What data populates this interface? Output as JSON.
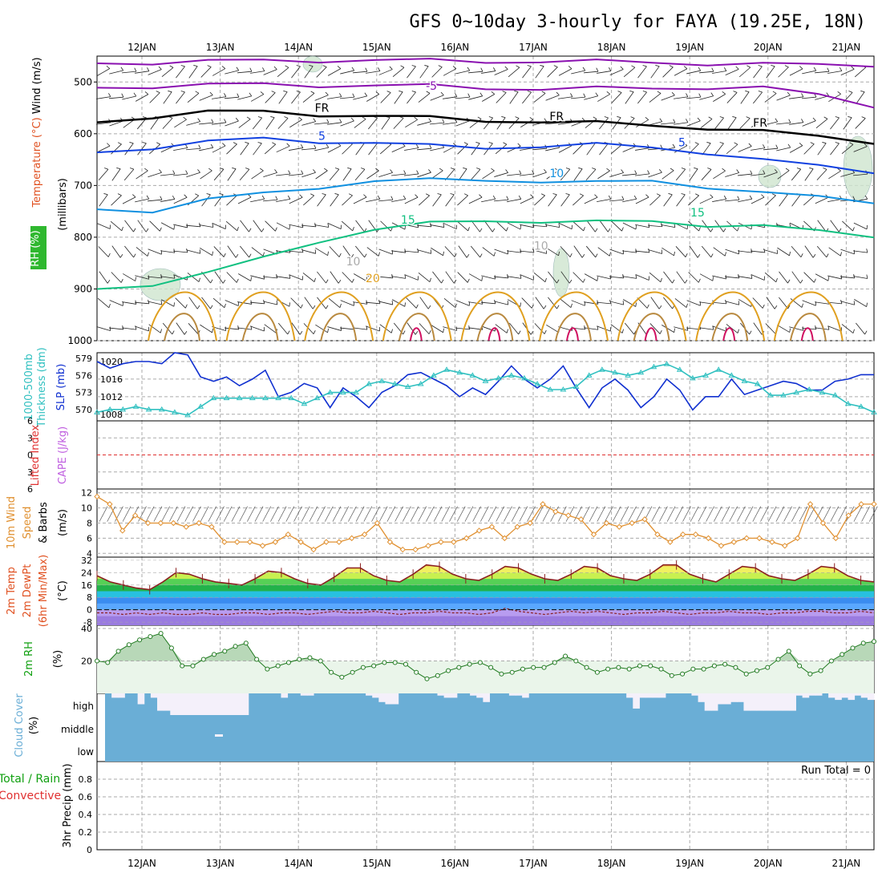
{
  "title": "GFS 0~10day 3-hourly for FAYA (19.25E, 18N)",
  "colors": {
    "wind_label": "#000000",
    "temperature_label": "#e05020",
    "rh_label": "#00aa00",
    "temp_purple": "#8a10b0",
    "temp_black": "#000000",
    "temp_blue": "#1040e0",
    "temp_cyan": "#1090e0",
    "temp_green": "#10c080",
    "temp_orange": "#e0a020",
    "temp_red": "#d01060",
    "slp": "#1030d0",
    "thickness": "#30c0c0",
    "lifted": "#e03030",
    "cape": "#c060e0",
    "wind10": "#e09030",
    "rh2m": "#10a010",
    "cloud": "#6aaed6",
    "grid": "#aaaaaa"
  },
  "chart_data": [
    {
      "type": "contour",
      "name": "upper-air",
      "dates": [
        "12JAN",
        "13JAN",
        "14JAN",
        "15JAN",
        "16JAN",
        "17JAN",
        "18JAN",
        "19JAN",
        "20JAN",
        "21JAN"
      ],
      "ylabel_parts": {
        "wind": "Wind (m/s)",
        "temperature": "Temperature (°C)",
        "rh": "RH (%)",
        "units": "(millibars)"
      },
      "yticks": [
        500,
        600,
        700,
        800,
        900,
        1000
      ],
      "ylim": [
        450,
        1000
      ],
      "contour_labels": [
        {
          "text": "-5",
          "t": 3.7,
          "p": 515,
          "color": "temp_purple"
        },
        {
          "text": "FR",
          "t": 2.3,
          "p": 558,
          "color": "temp_black"
        },
        {
          "text": "FR",
          "t": 5.3,
          "p": 574,
          "color": "temp_black"
        },
        {
          "text": "FR",
          "t": 7.9,
          "p": 586,
          "color": "temp_black"
        },
        {
          "text": "5",
          "t": 2.3,
          "p": 612,
          "color": "temp_blue"
        },
        {
          "text": "5",
          "t": 6.9,
          "p": 624,
          "color": "temp_blue"
        },
        {
          "text": "10",
          "t": 5.3,
          "p": 684,
          "color": "temp_cyan"
        },
        {
          "text": "15",
          "t": 3.4,
          "p": 774,
          "color": "temp_green"
        },
        {
          "text": "15",
          "t": 7.1,
          "p": 760,
          "color": "temp_green"
        },
        {
          "text": "20",
          "t": 2.95,
          "p": 887,
          "color": "temp_orange"
        },
        {
          "text": "10",
          "t": 2.7,
          "p": 854,
          "color": "grid"
        },
        {
          "text": "10",
          "t": 5.1,
          "p": 824,
          "color": "grid"
        }
      ],
      "isotherms": [
        {
          "name": "-10",
          "color": "temp_purple",
          "p": [
            464,
            462,
            460,
            459,
            458,
            458,
            459,
            460,
            460,
            461,
            462,
            464,
            466,
            467,
            466
          ]
        },
        {
          "name": "-5",
          "color": "temp_purple",
          "p": [
            511,
            508,
            506,
            505,
            506,
            507,
            508,
            511,
            513,
            513,
            512,
            510,
            512,
            525,
            545
          ]
        },
        {
          "name": "FR",
          "color": "temp_black",
          "p": [
            578,
            566,
            558,
            558,
            562,
            566,
            570,
            574,
            576,
            580,
            584,
            588,
            596,
            606,
            615
          ]
        },
        {
          "name": "5",
          "color": "temp_blue",
          "p": [
            636,
            626,
            616,
            610,
            614,
            618,
            624,
            626,
            624,
            622,
            626,
            636,
            652,
            662,
            672
          ]
        },
        {
          "name": "10",
          "color": "temp_cyan",
          "p": [
            746,
            748,
            728,
            716,
            702,
            692,
            690,
            688,
            692,
            696,
            690,
            702,
            716,
            722,
            730
          ]
        },
        {
          "name": "15",
          "color": "temp_green",
          "p": [
            900,
            890,
            870,
            840,
            806,
            786,
            774,
            766,
            770,
            772,
            768,
            776,
            780,
            788,
            796
          ]
        }
      ]
    },
    {
      "type": "line",
      "name": "slp-thickness",
      "left_axis": {
        "label": "1000-500mb Thickness (dm)",
        "ticks": [
          570,
          573,
          576,
          579
        ],
        "ylim": [
          568,
          580
        ]
      },
      "right_axis": {
        "label": "SLP (mb)",
        "ticks": [
          1008,
          1012,
          1016,
          1020
        ],
        "ylim": [
          1006.5,
          1022
        ]
      },
      "series": [
        {
          "name": "SLP (mb)",
          "axis": "right",
          "values": [
            1020,
            1018.5,
            1019.5,
            1020,
            1020,
            1019.5,
            1022,
            1021.5,
            1016.5,
            1015.5,
            1016.5,
            1014.5,
            1016,
            1018,
            1012,
            1013,
            1015,
            1014,
            1009.5,
            1014,
            1012,
            1009.5,
            1013,
            1014.5,
            1017,
            1017.5,
            1016,
            1014.5,
            1012,
            1014,
            1012.5,
            1015.5,
            1019,
            1016,
            1014,
            1016,
            1019,
            1014,
            1009.5,
            1014,
            1016,
            1013.5,
            1009.5,
            1012,
            1016,
            1013.5,
            1009,
            1012,
            1012,
            1016,
            1012.5,
            1013.5,
            1014.5,
            1015.5,
            1015,
            1013.5,
            1013.5,
            1015.5,
            1016,
            1017,
            1017
          ]
        },
        {
          "name": "1000-500mb Thickness (dm)",
          "axis": "left",
          "values": [
            569.5,
            570,
            570,
            570.5,
            570,
            570,
            569.5,
            569,
            570.5,
            572,
            572,
            572,
            572,
            572,
            572,
            572,
            571,
            572,
            573,
            573,
            573,
            574.5,
            575,
            574.5,
            574,
            574.5,
            576,
            577,
            576.5,
            576,
            575,
            575.5,
            576,
            575.5,
            574.5,
            573.5,
            573.5,
            574,
            576,
            577,
            576.5,
            576,
            576.5,
            577.5,
            578,
            577,
            575.5,
            576,
            577,
            576,
            575,
            574.5,
            572.5,
            572.5,
            573,
            573.5,
            573,
            572.5,
            571,
            570.5,
            569.5
          ]
        }
      ]
    },
    {
      "type": "line",
      "name": "stability",
      "left_axis": {
        "label": "Lifted Index",
        "ticks": [
          -6,
          -3,
          0,
          3,
          6
        ],
        "tick_labels": [
          "6",
          "3",
          "0",
          "3",
          "6"
        ]
      },
      "right_axis": {
        "label": "CAPE (J/kg)"
      },
      "series": [
        {
          "name": "Lifted Index zero line",
          "values": [
            0
          ]
        }
      ]
    },
    {
      "type": "line",
      "name": "10m-wind",
      "ylabel": "10m Wind Speed & Barbs",
      "yunit": "(m/s)",
      "yticks": [
        4,
        6,
        8,
        10,
        12
      ],
      "ylim": [
        3.5,
        12.5
      ],
      "series": [
        {
          "name": "10m Wind Speed",
          "values": [
            11.5,
            10.5,
            7,
            9,
            8,
            8,
            8,
            7.5,
            8,
            7.5,
            5.5,
            5.5,
            5.5,
            5,
            5.5,
            6.5,
            5.5,
            4.5,
            5.5,
            5.5,
            6,
            6.5,
            8,
            5.5,
            4.5,
            4.5,
            5,
            5.5,
            5.5,
            6,
            7,
            7.5,
            6,
            7.5,
            8,
            10.5,
            9.5,
            9,
            8.5,
            6.5,
            8,
            7.5,
            8,
            8.5,
            6.5,
            5.5,
            6.5,
            6.5,
            6,
            5,
            5.5,
            6,
            6,
            5.5,
            5,
            6,
            10.5,
            8,
            6,
            9,
            10.5,
            10.5
          ]
        }
      ]
    },
    {
      "type": "area",
      "name": "2m-temp",
      "ylabel": "2m Temp 2m DewPt (6hr Min/Max)",
      "yunit": "(°C)",
      "yticks": [
        -8,
        0,
        8,
        16,
        24,
        32
      ],
      "ylim": [
        -10,
        34
      ],
      "series": [
        {
          "name": "2m Temp",
          "values": [
            22,
            18,
            16,
            14,
            13,
            18,
            24,
            23,
            20,
            18,
            17,
            16,
            20,
            25,
            24,
            20,
            17,
            16,
            21,
            27,
            27,
            22,
            19,
            18,
            23,
            29,
            28,
            23,
            20,
            19,
            23,
            28,
            27,
            23,
            20,
            19,
            23,
            28,
            27,
            22,
            20,
            19,
            23,
            29,
            29,
            23,
            20,
            18,
            23,
            28,
            27,
            22,
            20,
            19,
            23,
            28,
            27,
            22,
            19,
            18
          ]
        },
        {
          "name": "2m DewPt",
          "values": [
            -2,
            -2,
            -3,
            -2,
            -3,
            -2,
            -3,
            -3,
            -2,
            -3,
            -3,
            -2,
            -2,
            -3,
            -2,
            -2,
            -3,
            -2,
            -1,
            -2,
            -2,
            -1,
            -2,
            -3,
            -2,
            -2,
            -1,
            -2,
            -2,
            -3,
            -2,
            1,
            -1,
            -2,
            -3,
            -2,
            -1,
            -2,
            -1,
            -2,
            -3,
            -2,
            -2,
            -1,
            -2,
            -3,
            -2,
            -2,
            -1,
            -2,
            -2,
            -3,
            -2,
            -2,
            -1,
            -1,
            -2,
            -2,
            -1,
            -2
          ]
        }
      ]
    },
    {
      "type": "area",
      "name": "2m-rh",
      "ylabel": "2m RH",
      "yunit": "(%)",
      "yticks": [
        20,
        40
      ],
      "ylim": [
        0,
        42
      ],
      "series": [
        {
          "name": "2m RH",
          "values": [
            20,
            19,
            26,
            30,
            33,
            35,
            37,
            28,
            17,
            17,
            21,
            24,
            26,
            29,
            31,
            21,
            15,
            17,
            19,
            21,
            22,
            20,
            13,
            10,
            13,
            16,
            17,
            19,
            19,
            18,
            13,
            9,
            11,
            14,
            16,
            18,
            19,
            16,
            12,
            13,
            15,
            16,
            16,
            19,
            23,
            20,
            16,
            13,
            15,
            16,
            15,
            17,
            17,
            15,
            11,
            12,
            15,
            15,
            17,
            18,
            16,
            12,
            14,
            16,
            21,
            26,
            17,
            12,
            14,
            20,
            24,
            28,
            31,
            32
          ]
        }
      ]
    },
    {
      "type": "bar",
      "name": "cloud-cover",
      "ylabel": "Cloud Cover",
      "yunit": "(%)",
      "levels": [
        "high",
        "middle",
        "low"
      ],
      "series": [
        {
          "name": "high",
          "values": [
            100,
            80,
            80,
            100,
            100,
            50,
            100,
            80,
            20,
            20,
            0,
            0,
            0,
            0,
            0,
            0,
            0,
            0,
            0,
            0,
            0,
            0,
            100,
            100,
            100,
            100,
            100,
            80,
            100,
            100,
            90,
            90,
            100,
            100,
            100,
            100,
            100,
            100,
            100,
            100,
            90,
            80,
            60,
            50,
            50,
            100,
            100,
            100,
            100,
            100,
            100,
            90,
            80,
            80,
            100,
            100,
            90,
            80,
            60,
            100,
            100,
            100,
            90,
            90,
            80,
            100,
            100,
            100,
            100,
            100,
            100,
            100,
            100,
            100,
            100,
            100,
            100,
            100,
            100,
            100,
            80,
            30,
            80,
            80,
            80,
            80,
            100,
            100,
            100,
            100,
            90,
            60,
            20,
            20,
            50,
            50,
            60,
            60,
            20,
            20,
            20,
            20,
            20,
            20,
            20,
            20,
            90,
            80,
            90,
            90,
            100,
            80,
            70,
            80,
            70,
            90,
            80,
            70
          ]
        },
        {
          "name": "middle",
          "values": [
            100,
            100,
            100,
            100,
            100,
            100,
            100,
            100,
            100,
            100,
            100,
            100,
            100,
            100,
            100,
            100,
            100,
            100,
            100,
            100,
            100,
            100,
            100,
            100,
            100,
            100,
            100,
            100,
            100,
            100,
            100,
            100,
            100,
            100,
            100,
            100,
            100,
            100,
            100,
            100,
            100,
            100,
            100,
            100,
            100,
            100,
            100,
            100,
            100,
            100,
            100,
            100,
            100,
            100,
            100,
            100,
            100,
            100,
            100,
            100,
            100
          ]
        },
        {
          "name": "low",
          "values": [
            100,
            100,
            100,
            100,
            100,
            100,
            100,
            100,
            100,
            100,
            100,
            100,
            100,
            100,
            100,
            100,
            100,
            100,
            100,
            100,
            100,
            100,
            100,
            100,
            100,
            100,
            100,
            100,
            100,
            100,
            100,
            100,
            100,
            100,
            100,
            100,
            100,
            100,
            100,
            100,
            100,
            100,
            100,
            100,
            100,
            100,
            100,
            100,
            100,
            100,
            100,
            100,
            100,
            100,
            100,
            100,
            100,
            100,
            100,
            100,
            100
          ]
        }
      ]
    },
    {
      "type": "bar",
      "name": "precip",
      "ylabel_total": "Total / Rain",
      "ylabel_conv": "Convective",
      "ylabel": "3hr Precip (mm)",
      "yticks": [
        0,
        0.2,
        0.4,
        0.6,
        0.8
      ],
      "ylim": [
        0,
        1
      ],
      "run_total_label": "Run Total = 0",
      "series": [
        {
          "name": "3hr Precip",
          "values": [
            0
          ]
        }
      ]
    }
  ]
}
